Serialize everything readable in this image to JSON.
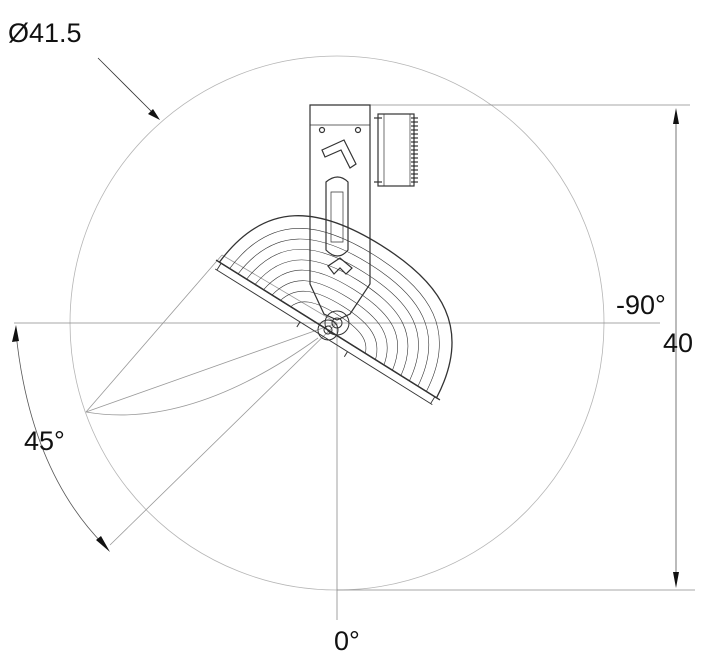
{
  "labels": {
    "diameter": "Ø41.5",
    "angle_neg90": "-90°",
    "height": "40",
    "angle_45": "45°",
    "angle_0": "0°"
  },
  "colors": {
    "line": "#222222",
    "thin": "#8a8a8a",
    "light": "#b5b5b5"
  }
}
